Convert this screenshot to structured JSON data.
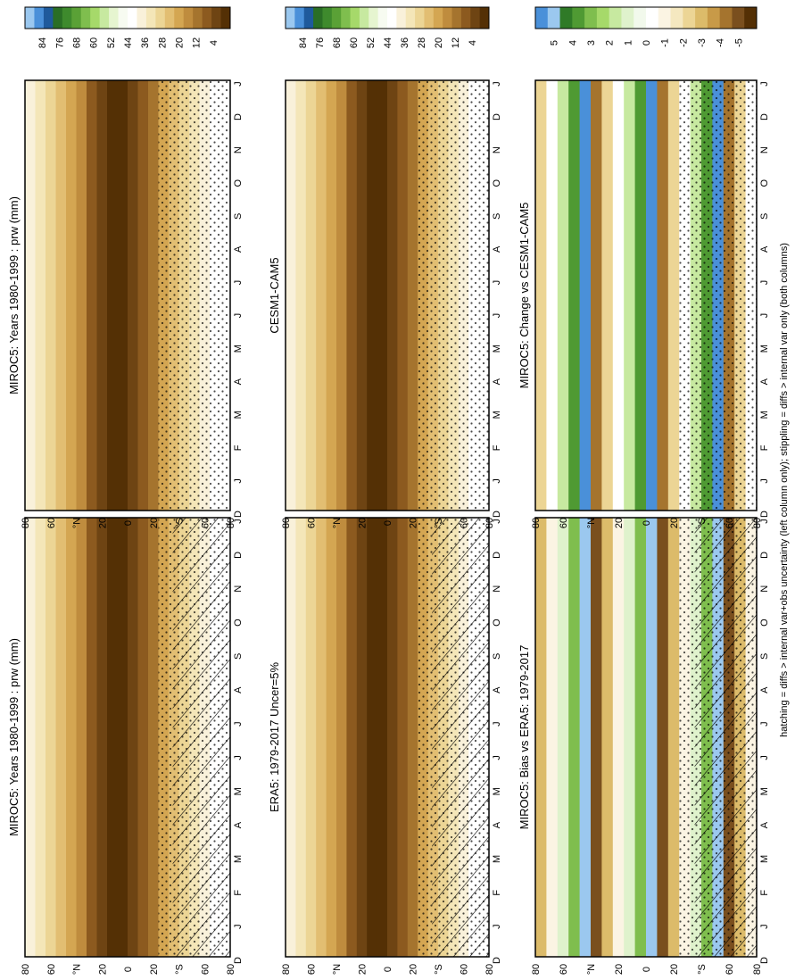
{
  "figure": {
    "footer": "hatching = diffs > internal var+obs uncertainty (left column only); stippling = diffs > internal var only (both columns)"
  },
  "colors": {
    "sequential": [
      "#543005",
      "#6e4413",
      "#8c5a1f",
      "#a5742e",
      "#bf8c3e",
      "#d4a652",
      "#e2be72",
      "#ecd595",
      "#f4e6b8",
      "#f9f1da",
      "#ffffff",
      "#f7fbf1",
      "#e6f5d0",
      "#c7e9a0",
      "#a6d96a",
      "#7fbe4e",
      "#5aa136",
      "#3e8a2d",
      "#2a6e25",
      "#1f5a9c",
      "#4a90d9",
      "#9bc8ef"
    ],
    "difference": [
      "#543005",
      "#7a4f1e",
      "#a5742e",
      "#c89a48",
      "#dcbb6a",
      "#ecd595",
      "#f5e8c0",
      "#fbf4e3",
      "#ffffff",
      "#f2f9ec",
      "#dff2cc",
      "#c7e9a0",
      "#a6d96a",
      "#7fbe4e",
      "#4f9a33",
      "#2f7a27",
      "#9bc8ef",
      "#4a90d9"
    ]
  },
  "chart_data": [
    {
      "type": "heatmap",
      "title": "MIROC5: Years 1980-1999 : prw (mm)",
      "x": [
        "D",
        "J",
        "F",
        "M",
        "A",
        "M",
        "J",
        "J",
        "A",
        "S",
        "O",
        "N",
        "D",
        "J"
      ],
      "y_ticks": [
        "80",
        "60",
        "°N",
        "20",
        "0",
        "20",
        "°S",
        "60",
        "80"
      ],
      "colorbar": {
        "labels": [
          "84",
          "76",
          "68",
          "60",
          "52",
          "44",
          "36",
          "28",
          "20",
          "12",
          "4"
        ]
      },
      "overlay": "hatching+stippling"
    },
    {
      "type": "heatmap",
      "title": "MIROC5: Years 1980-1999 : prw (mm)",
      "x": [
        "D",
        "J",
        "F",
        "M",
        "A",
        "M",
        "J",
        "J",
        "A",
        "S",
        "O",
        "N",
        "D",
        "J"
      ],
      "y_ticks": [
        "80",
        "60",
        "°N",
        "20",
        "0",
        "20",
        "°S",
        "60",
        "80"
      ],
      "colorbar": {
        "labels": [
          "84",
          "76",
          "68",
          "60",
          "52",
          "44",
          "36",
          "28",
          "20",
          "12",
          "4"
        ]
      },
      "overlay": "stippling"
    },
    {
      "type": "heatmap",
      "title": "ERA5: 1979-2017 Uncer=5%",
      "x": [
        "D",
        "J",
        "F",
        "M",
        "A",
        "M",
        "J",
        "J",
        "A",
        "S",
        "O",
        "N",
        "D",
        "J"
      ],
      "y_ticks": [
        "80",
        "60",
        "°N",
        "20",
        "0",
        "20",
        "°S",
        "60",
        "80"
      ],
      "colorbar": {
        "labels": [
          "84",
          "76",
          "68",
          "60",
          "52",
          "44",
          "36",
          "28",
          "20",
          "12",
          "4"
        ]
      },
      "overlay": "hatching+stippling"
    },
    {
      "type": "heatmap",
      "title": "CESM1-CAM5",
      "x": [
        "D",
        "J",
        "F",
        "M",
        "A",
        "M",
        "J",
        "J",
        "A",
        "S",
        "O",
        "N",
        "D",
        "J"
      ],
      "y_ticks": [
        "80",
        "60",
        "°N",
        "20",
        "0",
        "20",
        "°S",
        "60",
        "80"
      ],
      "colorbar": {
        "labels": [
          "84",
          "76",
          "68",
          "60",
          "52",
          "44",
          "36",
          "28",
          "20",
          "12",
          "4"
        ]
      },
      "overlay": "stippling"
    },
    {
      "type": "heatmap",
      "title": "MIROC5: Bias vs ERA5: 1979-2017",
      "x": [
        "D",
        "J",
        "F",
        "M",
        "A",
        "M",
        "J",
        "J",
        "A",
        "S",
        "O",
        "N",
        "D",
        "J"
      ],
      "y_ticks": [
        "80",
        "60",
        "°N",
        "20",
        "0",
        "20",
        "°S",
        "60",
        "80"
      ],
      "colorbar": {
        "labels": [
          "5",
          "4",
          "3",
          "2",
          "1",
          "0",
          "-1",
          "-2",
          "-3",
          "-4",
          "-5"
        ]
      },
      "overlay": "hatching+stippling"
    },
    {
      "type": "heatmap",
      "title": "MIROC5: Change vs CESM1-CAM5",
      "x": [
        "D",
        "J",
        "F",
        "M",
        "A",
        "M",
        "J",
        "J",
        "A",
        "S",
        "O",
        "N",
        "D",
        "J"
      ],
      "y_ticks": [
        "80",
        "60",
        "°N",
        "20",
        "0",
        "20",
        "°S",
        "60",
        "80"
      ],
      "colorbar": {
        "labels": [
          "5",
          "4",
          "3",
          "2",
          "1",
          "0",
          "-1",
          "-2",
          "-3",
          "-4",
          "-5"
        ]
      },
      "overlay": "stippling"
    }
  ]
}
